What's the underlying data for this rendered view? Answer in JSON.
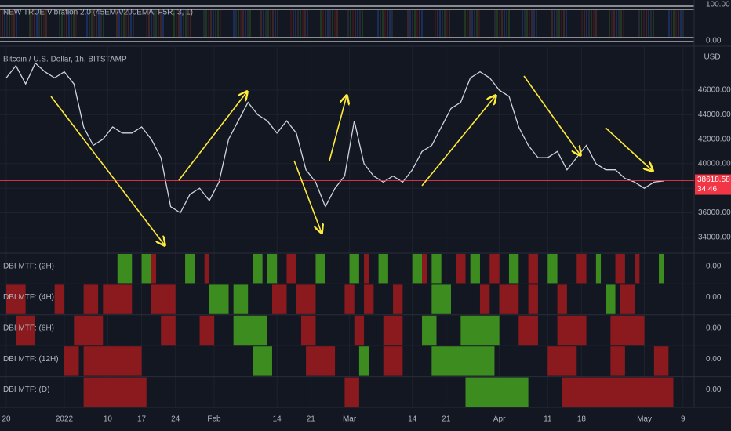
{
  "indicator": {
    "title": "NEW TRUE Vibration 2.0 (45EMA/200EMA, F5R, 3, 1)",
    "top_label": "100.00",
    "bottom_label": "0.00"
  },
  "chart_data": [
    {
      "type": "line",
      "title": "Bitcoin / U.S. Dollar, 1h, BITSTAMP",
      "currency": "USD",
      "color": "#d1d4dc",
      "x": [
        0,
        2,
        4,
        6,
        8,
        10,
        12,
        14,
        16,
        18,
        20,
        22,
        24,
        26,
        28,
        30,
        32,
        34,
        36,
        38,
        40,
        42,
        44,
        46,
        48,
        50,
        52,
        54,
        56,
        58,
        60,
        62,
        64,
        66,
        68,
        70,
        72,
        74,
        76,
        78,
        80,
        82,
        84,
        86,
        88,
        90,
        92,
        94,
        96,
        98,
        100,
        102,
        104,
        106,
        108,
        110,
        112,
        114,
        116,
        118,
        120,
        122,
        124,
        126,
        128,
        130,
        132,
        134,
        136
      ],
      "values": [
        47000,
        48000,
        46500,
        48200,
        47500,
        47000,
        47500,
        46500,
        43000,
        41500,
        42000,
        43000,
        42500,
        42500,
        43000,
        42000,
        40500,
        36500,
        36000,
        37500,
        38000,
        37000,
        38500,
        42000,
        43500,
        45000,
        44000,
        43500,
        42500,
        43500,
        42500,
        39500,
        38500,
        36500,
        38000,
        39000,
        43500,
        40000,
        39000,
        38500,
        39000,
        38500,
        39500,
        41000,
        41500,
        43000,
        44500,
        45000,
        47000,
        47500,
        47000,
        46000,
        45500,
        43000,
        41500,
        40500,
        40500,
        41000,
        39500,
        40500,
        41500,
        40000,
        39500,
        39500,
        38800,
        38500,
        38000,
        38500,
        38600
      ],
      "xlim": [
        -1.3,
        142.3
      ],
      "xticks": [
        {
          "value": 0,
          "label": "20"
        },
        {
          "value": 12,
          "label": "2022"
        },
        {
          "value": 21,
          "label": "10"
        },
        {
          "value": 28,
          "label": "17"
        },
        {
          "value": 35,
          "label": "24"
        },
        {
          "value": 43,
          "label": "Feb"
        },
        {
          "value": 56,
          "label": "14"
        },
        {
          "value": 63,
          "label": "21"
        },
        {
          "value": 71,
          "label": "Mar"
        },
        {
          "value": 84,
          "label": "14"
        },
        {
          "value": 91,
          "label": "21"
        },
        {
          "value": 102,
          "label": "Apr"
        },
        {
          "value": 112,
          "label": "11"
        },
        {
          "value": 119,
          "label": "18"
        },
        {
          "value": 132,
          "label": "May"
        },
        {
          "value": 140,
          "label": "9"
        }
      ],
      "ylim": [
        32900,
        49200
      ],
      "yticks": [
        {
          "value": 34000,
          "label": "34000.00"
        },
        {
          "value": 36000,
          "label": "36000.00"
        },
        {
          "value": 38000,
          "label": "38000.00"
        },
        {
          "value": 40000,
          "label": "40000.00"
        },
        {
          "value": 42000,
          "label": "42000.00"
        },
        {
          "value": 44000,
          "label": "44000.00"
        },
        {
          "value": 46000,
          "label": "46000.00"
        }
      ],
      "last_price": 38618.58,
      "last_price_label": "38618.58",
      "countdown": "34:46",
      "last_color": "#f23645",
      "grid": true
    },
    {
      "type": "timeline",
      "bull_color": "#3d8c1f",
      "bear_color": "#8b1a1f",
      "rows": [
        {
          "label": "DBI MTF: (2H)",
          "value_label": "0.00",
          "segments": [
            [
              23,
              26,
              "bull"
            ],
            [
              28,
              30,
              "bull"
            ],
            [
              30,
              31,
              "bear"
            ],
            [
              37,
              39,
              "bull"
            ],
            [
              41,
              42,
              "bear"
            ],
            [
              51,
              53,
              "bull"
            ],
            [
              54,
              56,
              "bull"
            ],
            [
              58,
              60,
              "bear"
            ],
            [
              64,
              66,
              "bull"
            ],
            [
              71,
              73,
              "bull"
            ],
            [
              74,
              75,
              "bear"
            ],
            [
              77,
              79,
              "bull"
            ],
            [
              84,
              86,
              "bull"
            ],
            [
              86,
              87,
              "bear"
            ],
            [
              88,
              90,
              "bull"
            ],
            [
              93,
              95,
              "bear"
            ],
            [
              96,
              98,
              "bull"
            ],
            [
              100,
              102,
              "bear"
            ],
            [
              104,
              106,
              "bull"
            ],
            [
              108,
              110,
              "bear"
            ],
            [
              112,
              114,
              "bull"
            ],
            [
              118,
              120,
              "bear"
            ],
            [
              122,
              123,
              "bull"
            ],
            [
              126,
              128,
              "bear"
            ],
            [
              130,
              131,
              "bear"
            ],
            [
              135,
              136,
              "bull"
            ]
          ]
        },
        {
          "label": "DBI MTF: (4H)",
          "value_label": "0.00",
          "segments": [
            [
              0,
              4,
              "bear"
            ],
            [
              10,
              12,
              "bear"
            ],
            [
              16,
              19,
              "bear"
            ],
            [
              20,
              26,
              "bear"
            ],
            [
              30,
              35,
              "bear"
            ],
            [
              42,
              46,
              "bull"
            ],
            [
              47,
              50,
              "bull"
            ],
            [
              55,
              58,
              "bear"
            ],
            [
              60,
              64,
              "bear"
            ],
            [
              70,
              72,
              "bear"
            ],
            [
              74,
              76,
              "bear"
            ],
            [
              80,
              82,
              "bear"
            ],
            [
              88,
              92,
              "bull"
            ],
            [
              98,
              100,
              "bear"
            ],
            [
              102,
              106,
              "bear"
            ],
            [
              108,
              110,
              "bear"
            ],
            [
              114,
              116,
              "bear"
            ],
            [
              124,
              126,
              "bull"
            ],
            [
              127,
              130,
              "bear"
            ]
          ]
        },
        {
          "label": "DBI MTF: (6H)",
          "value_label": "0.00",
          "segments": [
            [
              2,
              6,
              "bear"
            ],
            [
              14,
              20,
              "bear"
            ],
            [
              32,
              35,
              "bear"
            ],
            [
              40,
              43,
              "bear"
            ],
            [
              47,
              54,
              "bull"
            ],
            [
              61,
              64,
              "bear"
            ],
            [
              72,
              74,
              "bear"
            ],
            [
              78,
              82,
              "bear"
            ],
            [
              86,
              89,
              "bull"
            ],
            [
              94,
              102,
              "bull"
            ],
            [
              106,
              110,
              "bear"
            ],
            [
              114,
              120,
              "bear"
            ],
            [
              125,
              132,
              "bear"
            ]
          ]
        },
        {
          "label": "DBI MTF: (12H)",
          "value_label": "0.00",
          "segments": [
            [
              12,
              15,
              "bear"
            ],
            [
              16,
              28,
              "bear"
            ],
            [
              51,
              55,
              "bull"
            ],
            [
              62,
              68,
              "bear"
            ],
            [
              73,
              75,
              "bull"
            ],
            [
              78,
              82,
              "bear"
            ],
            [
              88,
              101,
              "bull"
            ],
            [
              112,
              118,
              "bear"
            ],
            [
              125,
              128,
              "bear"
            ],
            [
              134,
              137,
              "bear"
            ]
          ]
        },
        {
          "label": "DBI MTF: (D)",
          "value_label": "0.00",
          "segments": [
            [
              16,
              29,
              "bear"
            ],
            [
              70,
              73,
              "bear"
            ],
            [
              95,
              108,
              "bull"
            ],
            [
              115,
              138,
              "bear"
            ]
          ]
        }
      ]
    }
  ]
}
